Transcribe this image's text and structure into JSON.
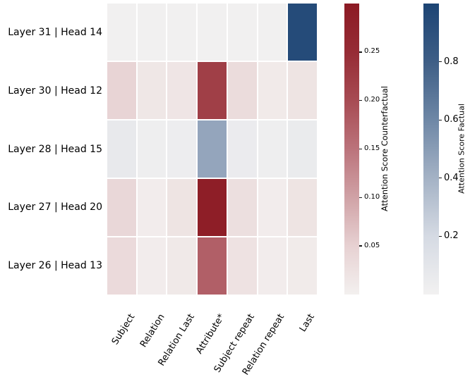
{
  "figure": {
    "background_color": "#ffffff",
    "text_color": "#000000",
    "grid_line_color": "#ffffff"
  },
  "chart_data": {
    "type": "heatmap",
    "title": "",
    "xlabel": "",
    "ylabel": "",
    "x_categories": [
      "Subject",
      "Relation",
      "Relation Last",
      "Attribute*",
      "Subject repeat",
      "Relation repeat",
      "Last"
    ],
    "rows": [
      {
        "label": "Layer 31 | Head 14",
        "colormap": "factual",
        "values": [
          0.01,
          0.01,
          0.01,
          0.01,
          0.01,
          0.01,
          0.95
        ]
      },
      {
        "label": "Layer 30 | Head 12",
        "colormap": "counterfactual",
        "values": [
          0.045,
          0.015,
          0.017,
          0.22,
          0.033,
          0.01,
          0.02
        ]
      },
      {
        "label": "Layer 28 | Head 15",
        "colormap": "factual",
        "values": [
          0.07,
          0.03,
          0.035,
          0.46,
          0.05,
          0.03,
          0.055
        ]
      },
      {
        "label": "Layer 27 | Head 20",
        "colormap": "counterfactual",
        "values": [
          0.04,
          0.006,
          0.02,
          0.29,
          0.028,
          0.006,
          0.02
        ]
      },
      {
        "label": "Layer 26 | Head 13",
        "colormap": "counterfactual",
        "values": [
          0.035,
          0.006,
          0.012,
          0.175,
          0.022,
          0.006,
          0.008
        ]
      }
    ],
    "colormaps": {
      "counterfactual": {
        "vmin": 0,
        "vmax": 0.3,
        "stops": [
          [
            0,
            "#f3f0ef"
          ],
          [
            0.167,
            "#e7d1d2"
          ],
          [
            0.333,
            "#d0a2a6"
          ],
          [
            0.5,
            "#bb737b"
          ],
          [
            0.667,
            "#a74b53"
          ],
          [
            0.833,
            "#962c35"
          ],
          [
            1,
            "#8c1a24"
          ]
        ]
      },
      "factual": {
        "vmin": 0,
        "vmax": 1.0,
        "stops": [
          [
            0,
            "#f2f1f1"
          ],
          [
            0.2,
            "#d5dae3"
          ],
          [
            0.4,
            "#a4b2c5"
          ],
          [
            0.6,
            "#6e87a6"
          ],
          [
            0.8,
            "#3e5e86"
          ],
          [
            1,
            "#1c4474"
          ]
        ]
      }
    },
    "colorbars": [
      {
        "key": "counterfactual",
        "label": "Attention Score Counterfactual",
        "tick_values": [
          0.05,
          0.1,
          0.15,
          0.2,
          0.25
        ],
        "tick_labels": [
          "0.05",
          "0.10",
          "0.15",
          "0.20",
          "0.25"
        ]
      },
      {
        "key": "factual",
        "label": "Attention Score Factual",
        "tick_values": [
          0.2,
          0.4,
          0.6,
          0.8
        ],
        "tick_labels": [
          "0.2",
          "0.4",
          "0.6",
          "0.8"
        ]
      }
    ],
    "legend": null,
    "grid": false
  }
}
